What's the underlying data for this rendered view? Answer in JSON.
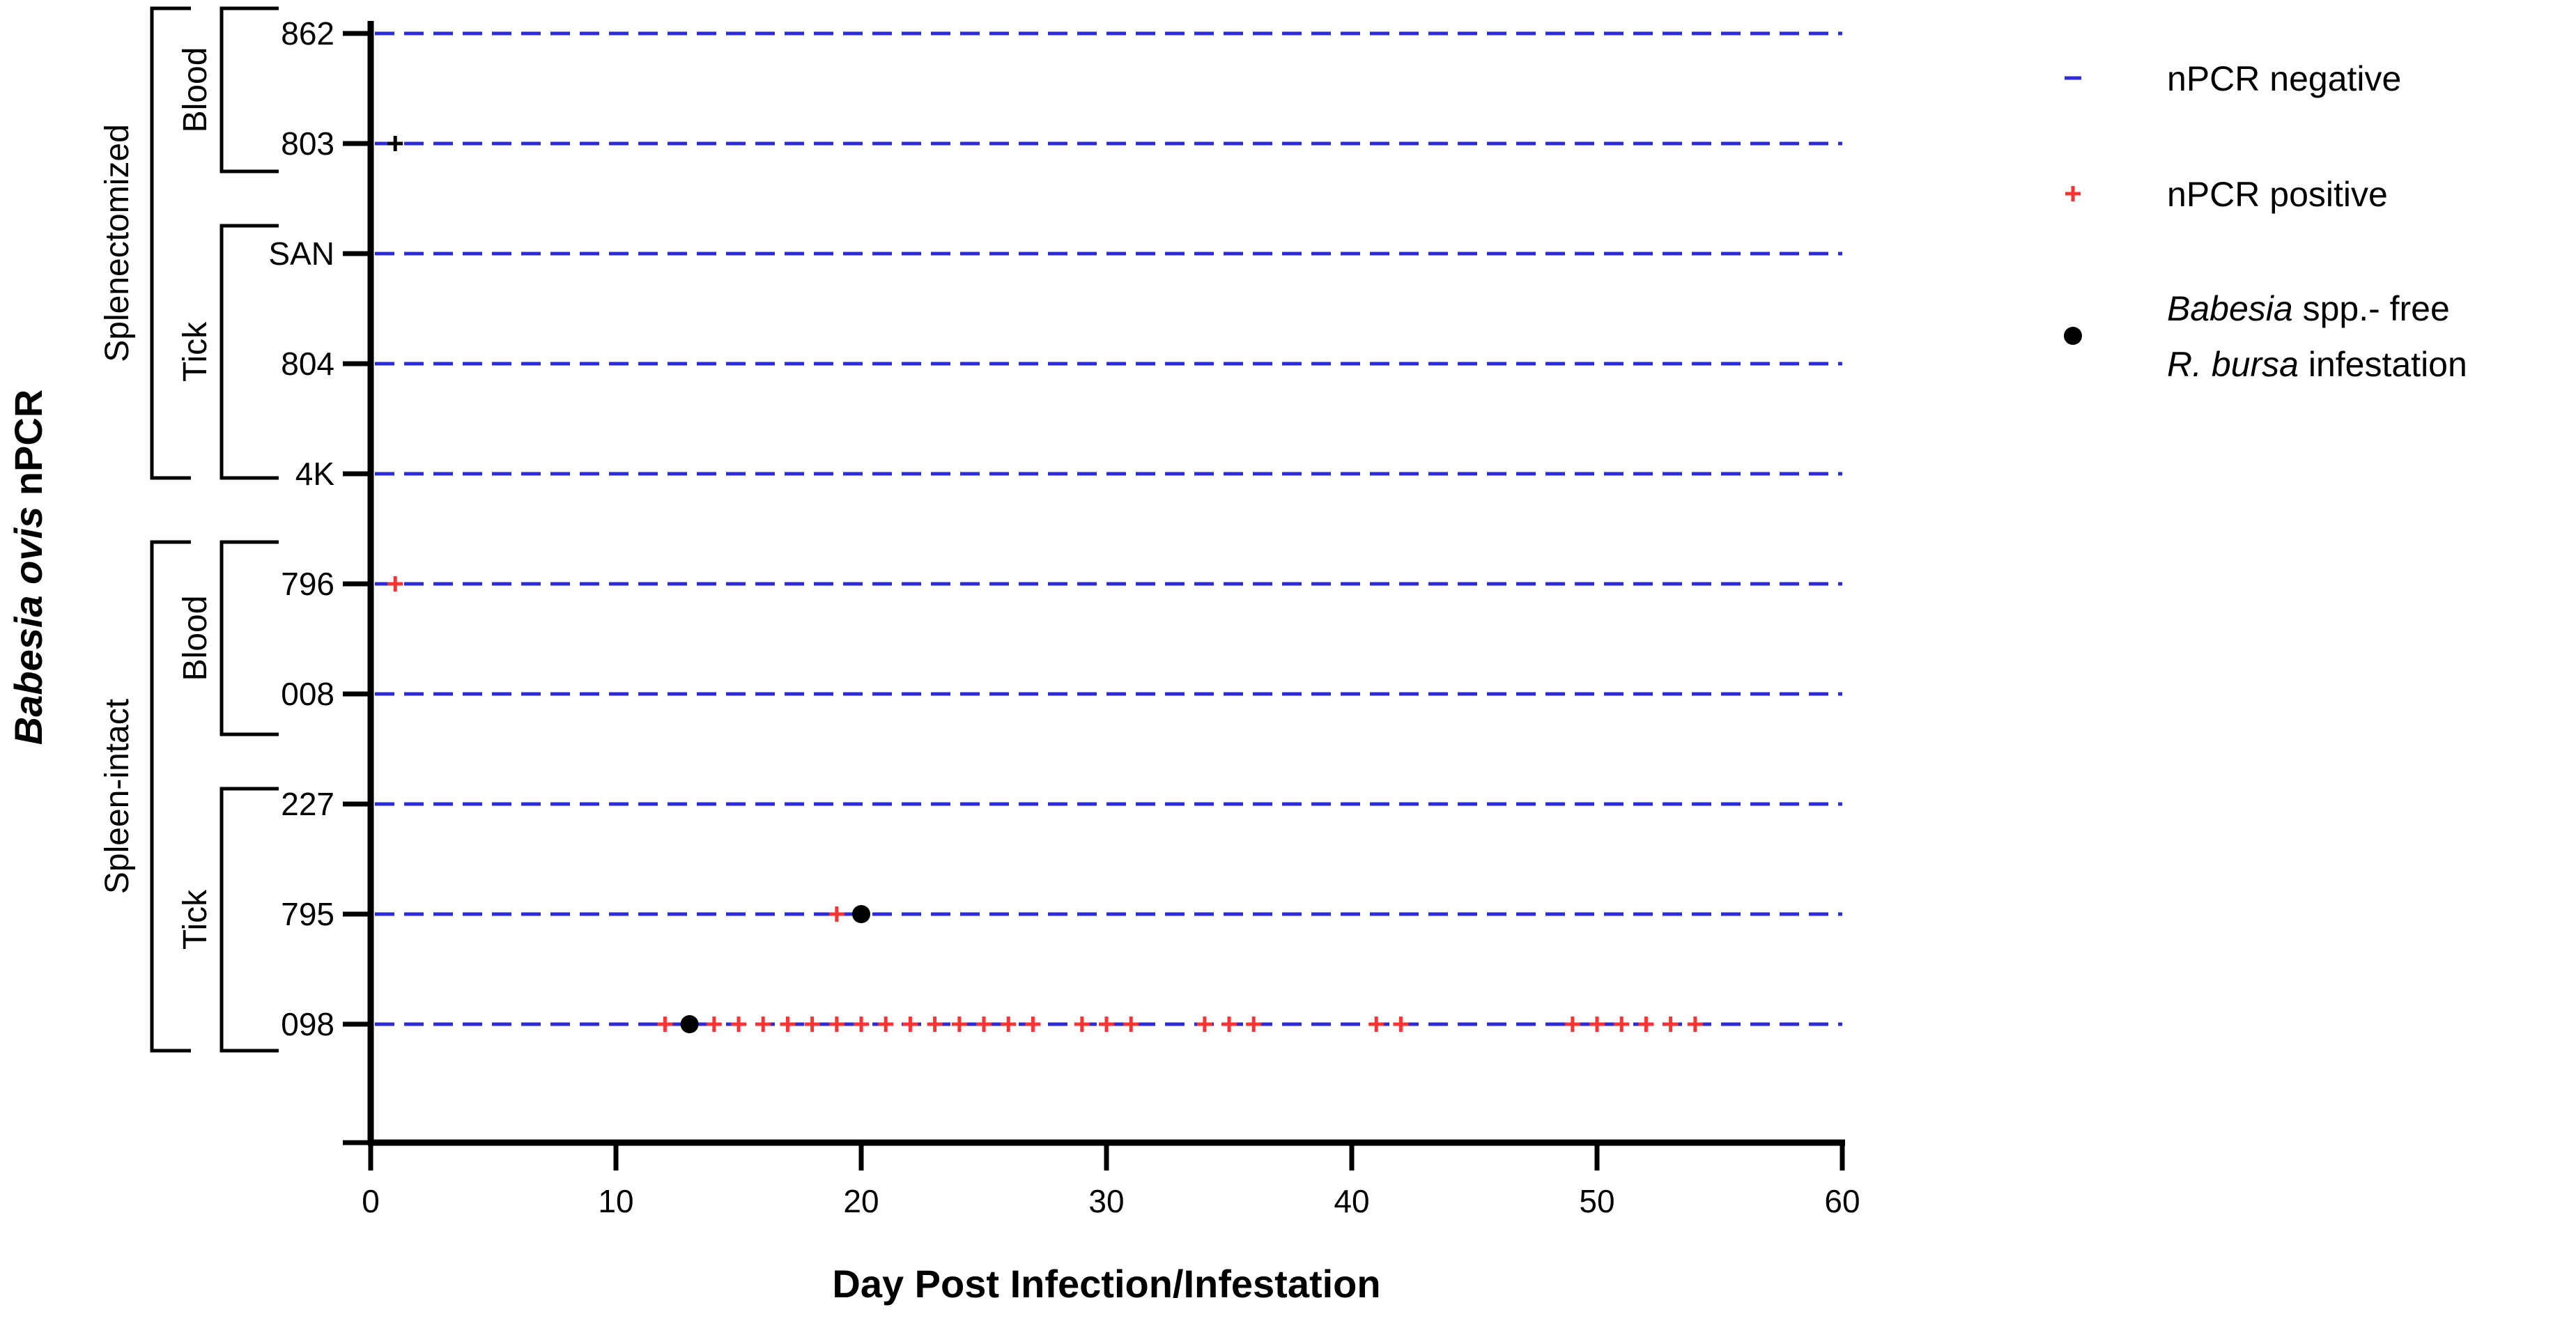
{
  "chart_data": {
    "type": "scatter",
    "xlabel": "Day Post Infection/Infestation",
    "ylabel_italic": "Babesia ovis",
    "ylabel_rest": " nPCR",
    "xlim": [
      0,
      60
    ],
    "xticks": [
      0,
      10,
      20,
      30,
      40,
      50,
      60
    ],
    "categories": [
      "862",
      "803",
      "SAN",
      "804",
      "4K",
      "796",
      "008",
      "227",
      "795",
      "098"
    ],
    "groups": [
      {
        "label": "Splenectomized",
        "subgroups": [
          {
            "label": "Blood",
            "categories": [
              "862",
              "803"
            ]
          },
          {
            "label": "Tick",
            "categories": [
              "SAN",
              "804",
              "4K"
            ]
          }
        ]
      },
      {
        "label": "Spleen-intact",
        "subgroups": [
          {
            "label": "Blood",
            "categories": [
              "796",
              "008"
            ]
          },
          {
            "label": "Tick",
            "categories": [
              "227",
              "795",
              "098"
            ]
          }
        ]
      }
    ],
    "series": [
      {
        "name": "nPCR negative",
        "marker": "dash-line",
        "color": "#2b2bd9"
      },
      {
        "name": "nPCR positive",
        "marker": "plus",
        "color": "#ff3333",
        "points": [
          {
            "category": "803",
            "x": 1,
            "color": "#000000"
          },
          {
            "category": "796",
            "x": 1
          },
          {
            "category": "795",
            "x": 19
          },
          {
            "category": "098",
            "x": 12
          },
          {
            "category": "098",
            "x": 14
          },
          {
            "category": "098",
            "x": 15
          },
          {
            "category": "098",
            "x": 16
          },
          {
            "category": "098",
            "x": 17
          },
          {
            "category": "098",
            "x": 18
          },
          {
            "category": "098",
            "x": 19
          },
          {
            "category": "098",
            "x": 20
          },
          {
            "category": "098",
            "x": 21
          },
          {
            "category": "098",
            "x": 22
          },
          {
            "category": "098",
            "x": 23
          },
          {
            "category": "098",
            "x": 24
          },
          {
            "category": "098",
            "x": 25
          },
          {
            "category": "098",
            "x": 26
          },
          {
            "category": "098",
            "x": 27
          },
          {
            "category": "098",
            "x": 29
          },
          {
            "category": "098",
            "x": 30
          },
          {
            "category": "098",
            "x": 31
          },
          {
            "category": "098",
            "x": 34
          },
          {
            "category": "098",
            "x": 35
          },
          {
            "category": "098",
            "x": 36
          },
          {
            "category": "098",
            "x": 41
          },
          {
            "category": "098",
            "x": 42
          },
          {
            "category": "098",
            "x": 49
          },
          {
            "category": "098",
            "x": 50
          },
          {
            "category": "098",
            "x": 51
          },
          {
            "category": "098",
            "x": 52
          },
          {
            "category": "098",
            "x": 53
          },
          {
            "category": "098",
            "x": 54
          }
        ]
      },
      {
        "name_italic": "Babesia",
        "name_rest": " spp.- free",
        "name_line2_italic": "R. bursa",
        "name_line2_rest": " infestation",
        "marker": "dot",
        "color": "#000000",
        "points": [
          {
            "category": "795",
            "x": 20
          },
          {
            "category": "098",
            "x": 13
          }
        ]
      }
    ],
    "grid": false,
    "legend": "top-right"
  }
}
